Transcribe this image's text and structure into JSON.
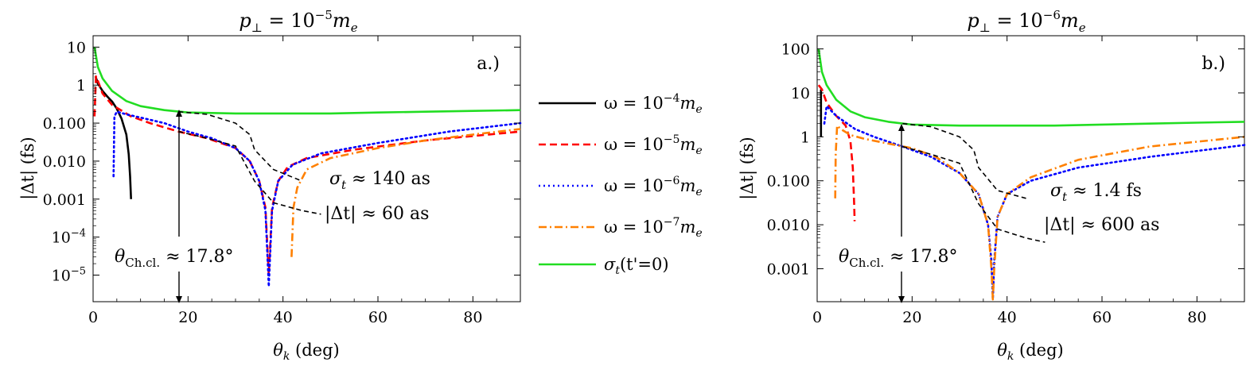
{
  "chart_data": [
    {
      "type": "line",
      "panel_label": "a.)",
      "title": {
        "base": "p",
        "sub": "⊥",
        "mid": " = 10",
        "sup": "−5",
        "tail": "m",
        "tail_sub": "e"
      },
      "xlabel": {
        "base": "θ",
        "sub": "k",
        "tail": " (deg)"
      },
      "ylabel": "|Δt| (fs)",
      "xlim": [
        0,
        90
      ],
      "ylim_log10": [
        -5.7,
        1.3
      ],
      "x_ticks": [
        "0",
        "20",
        "40",
        "60",
        "80"
      ],
      "y_ticks": [
        {
          "label": "10",
          "exp": 1
        },
        {
          "label": "1",
          "exp": 0
        },
        {
          "label": "0.100",
          "exp": -1
        },
        {
          "label": "0.010",
          "exp": -2
        },
        {
          "label": "0.001",
          "exp": -3
        },
        {
          "label": "10",
          "sup": "−4",
          "exp": -4
        },
        {
          "label": "10",
          "sup": "−5",
          "exp": -5
        }
      ],
      "series": [
        {
          "name": "ω = 10⁻⁴ mₑ",
          "color": "#000000",
          "style": "solid",
          "x": [
            0.5,
            1,
            2,
            3,
            4,
            5,
            6,
            7,
            7.5,
            7.8,
            8
          ],
          "y": [
            1.7,
            1.1,
            0.7,
            0.5,
            0.37,
            0.24,
            0.13,
            0.05,
            0.015,
            0.004,
            0.001
          ]
        },
        {
          "name": "ω = 10⁻⁵ mₑ",
          "color": "#ff0000",
          "style": "dashed",
          "x": [
            0.3,
            0.6,
            1,
            2,
            4,
            8,
            12,
            18,
            24,
            30,
            33,
            35,
            36.3,
            37,
            37.7,
            39,
            41,
            45,
            55,
            70,
            90
          ],
          "y": [
            0.15,
            1.7,
            1.3,
            0.6,
            0.3,
            0.15,
            0.1,
            0.06,
            0.04,
            0.022,
            0.01,
            0.003,
            0.0006,
            1e-05,
            0.0006,
            0.003,
            0.007,
            0.012,
            0.02,
            0.035,
            0.06
          ]
        },
        {
          "name": "ω = 10⁻⁶ mₑ",
          "color": "#0000ff",
          "style": "dotted",
          "x": [
            4.3,
            4.4,
            4.5,
            5,
            7,
            10,
            15,
            20,
            25,
            30,
            33,
            35,
            36.3,
            37,
            37.7,
            39,
            42,
            48,
            60,
            75,
            90
          ],
          "y": [
            0.004,
            0.03,
            0.15,
            0.2,
            0.17,
            0.14,
            0.1,
            0.06,
            0.04,
            0.022,
            0.01,
            0.003,
            0.0005,
            5e-06,
            0.0005,
            0.003,
            0.008,
            0.016,
            0.03,
            0.06,
            0.1
          ]
        },
        {
          "name": "ω = 10⁻⁷ mₑ",
          "color": "#ff8000",
          "style": "dashdot",
          "x": [
            41.8,
            42.2,
            43,
            45,
            50,
            60,
            70,
            80,
            90
          ],
          "y": [
            3e-05,
            0.0006,
            0.002,
            0.006,
            0.012,
            0.022,
            0.035,
            0.05,
            0.07
          ]
        },
        {
          "name": "σₜ(t'=0)",
          "color": "#22dd22",
          "style": "solid",
          "x": [
            0.3,
            1,
            2,
            4,
            7,
            10,
            15,
            20,
            30,
            40,
            50,
            60,
            70,
            80,
            90
          ],
          "y": [
            10,
            3,
            1.5,
            0.7,
            0.38,
            0.28,
            0.22,
            0.19,
            0.18,
            0.18,
            0.18,
            0.19,
            0.2,
            0.21,
            0.22
          ]
        },
        {
          "name": "σt approx",
          "color": "#000000",
          "style": "dashed",
          "annotation": true,
          "x": [
            18,
            24,
            30,
            33,
            34,
            38,
            44
          ],
          "y": [
            0.2,
            0.17,
            0.1,
            0.05,
            0.02,
            0.006,
            0.003
          ]
        },
        {
          "name": "|Δt| approx",
          "color": "#000000",
          "style": "dashed",
          "annotation": true,
          "x": [
            18,
            24,
            30,
            34,
            38,
            44,
            48
          ],
          "y": [
            0.06,
            0.04,
            0.025,
            0.003,
            0.0008,
            0.0005,
            0.0004
          ]
        }
      ],
      "annotations": {
        "sigma_t": {
          "base": "σ",
          "sub": "t",
          "rest": " ≈ 140 as"
        },
        "delta_t": {
          "rest": "|Δt| ≈ 60 as"
        },
        "theta": {
          "base": "θ",
          "sub": "Ch.cl.",
          "rest": " ≈ 17.8°"
        }
      }
    },
    {
      "type": "line",
      "panel_label": "b.)",
      "title": {
        "base": "p",
        "sub": "⊥",
        "mid": " = 10",
        "sup": "−6",
        "tail": "m",
        "tail_sub": "e"
      },
      "xlabel": {
        "base": "θ",
        "sub": "k",
        "tail": " (deg)"
      },
      "ylabel": "|Δt| (fs)",
      "xlim": [
        0,
        90
      ],
      "ylim_log10": [
        -3.75,
        2.3
      ],
      "x_ticks": [
        "0",
        "20",
        "40",
        "60",
        "80"
      ],
      "y_ticks": [
        {
          "label": "100",
          "exp": 2
        },
        {
          "label": "10",
          "exp": 1
        },
        {
          "label": "1",
          "exp": 0
        },
        {
          "label": "0.100",
          "exp": -1
        },
        {
          "label": "0.010",
          "exp": -2
        },
        {
          "label": "0.001",
          "exp": -3
        }
      ],
      "series": [
        {
          "name": "ω = 10⁻⁴ mₑ",
          "color": "#000000",
          "style": "solid",
          "x": [
            0.8,
            0.8,
            0.8
          ],
          "y": [
            12,
            4,
            1
          ]
        },
        {
          "name": "ω = 10⁻⁵ mₑ",
          "color": "#ff0000",
          "style": "dashed",
          "x": [
            0.3,
            1,
            2,
            4,
            6,
            7,
            7.5,
            7.8,
            7.9
          ],
          "y": [
            15,
            12,
            6,
            3,
            1.8,
            0.8,
            0.2,
            0.03,
            0.012
          ]
        },
        {
          "name": "ω = 10⁻⁶ mₑ",
          "color": "#0000ff",
          "style": "dotted",
          "x": [
            1.5,
            2,
            4,
            8,
            12,
            18,
            24,
            30,
            34,
            36,
            36.7,
            37,
            37.3,
            38,
            40,
            45,
            55,
            70,
            90
          ],
          "y": [
            2,
            5,
            3,
            1.5,
            1,
            0.6,
            0.35,
            0.15,
            0.05,
            0.01,
            0.0015,
            0.0002,
            0.0015,
            0.015,
            0.05,
            0.1,
            0.2,
            0.35,
            0.65
          ]
        },
        {
          "name": "ω = 10⁻⁷ mₑ",
          "color": "#ff8000",
          "style": "dashdot",
          "x": [
            3.8,
            3.9,
            4.2,
            5,
            7,
            10,
            15,
            20,
            25,
            30,
            34,
            36,
            36.7,
            37,
            37.3,
            38,
            40,
            45,
            55,
            70,
            90
          ],
          "y": [
            0.04,
            0.4,
            1.8,
            1.5,
            1.1,
            0.9,
            0.7,
            0.55,
            0.35,
            0.15,
            0.05,
            0.01,
            0.001,
            0.0002,
            0.001,
            0.015,
            0.05,
            0.12,
            0.3,
            0.6,
            1
          ]
        },
        {
          "name": "σₜ(t'=0)",
          "color": "#22dd22",
          "style": "solid",
          "x": [
            0.3,
            1,
            2,
            4,
            7,
            10,
            15,
            20,
            30,
            40,
            50,
            60,
            70,
            80,
            90
          ],
          "y": [
            100,
            30,
            15,
            7,
            3.8,
            2.8,
            2.2,
            1.9,
            1.8,
            1.8,
            1.8,
            1.9,
            2,
            2.1,
            2.2
          ]
        },
        {
          "name": "σt approx",
          "color": "#000000",
          "style": "dashed",
          "annotation": true,
          "x": [
            18,
            24,
            30,
            33,
            34,
            38,
            44
          ],
          "y": [
            2,
            1.7,
            1,
            0.5,
            0.2,
            0.06,
            0.04
          ]
        },
        {
          "name": "|Δt| approx",
          "color": "#000000",
          "style": "dashed",
          "annotation": true,
          "x": [
            18,
            24,
            30,
            34,
            38,
            44,
            48
          ],
          "y": [
            0.6,
            0.4,
            0.25,
            0.03,
            0.008,
            0.005,
            0.004
          ]
        }
      ],
      "annotations": {
        "sigma_t": {
          "base": "σ",
          "sub": "t",
          "rest": " ≈ 1.4 fs"
        },
        "delta_t": {
          "rest": "|Δt| ≈ 600 as"
        },
        "theta": {
          "base": "θ",
          "sub": "Ch.cl.",
          "rest": " ≈ 17.8°"
        }
      }
    }
  ],
  "legend": {
    "placement": "center",
    "entries": [
      {
        "base": "ω = 10",
        "sup": "−4",
        "tail": "m",
        "tail_sub": "e",
        "color": "#000000",
        "style": "solid"
      },
      {
        "base": "ω = 10",
        "sup": "−5",
        "tail": "m",
        "tail_sub": "e",
        "color": "#ff0000",
        "style": "dashed"
      },
      {
        "base": "ω = 10",
        "sup": "−6",
        "tail": "m",
        "tail_sub": "e",
        "color": "#0000ff",
        "style": "dotted"
      },
      {
        "base": "ω = 10",
        "sup": "−7",
        "tail": "m",
        "tail_sub": "e",
        "color": "#ff8000",
        "style": "dashdot"
      },
      {
        "base": "σ",
        "sub": "t",
        "tail": "(t'=0)",
        "color": "#22dd22",
        "style": "solid"
      }
    ]
  }
}
